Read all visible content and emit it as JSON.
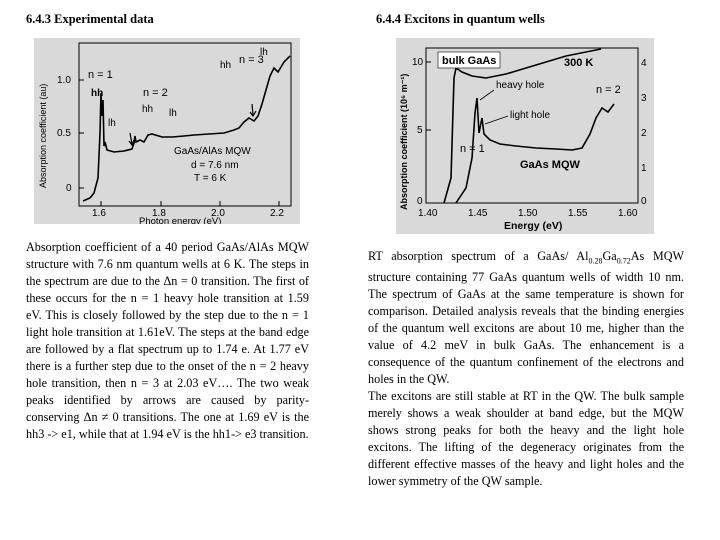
{
  "left": {
    "heading": "6.4.3   Experimental data",
    "caption": "Absorption coefficient of a 40 period GaAs/AlAs MQW structure with 7.6 nm quantum wells at 6 K. The steps in the spectrum are due to the Δn = 0 transition. The first of these occurs for the n = 1 heavy hole transition at 1.59 eV. This is closely followed by the step due to the n = 1 light hole transition at 1.61eV. The steps at the band edge are followed by a flat spectrum up to 1.74 e. At 1.77 eV there is a further step due to the onset of the n = 2 heavy hole transition, then n = 3 at 2.03 eV…. The two weak peaks identified by arrows are caused by parity-conserving Δn ≠ 0 transitions. The one at 1.69 eV is the hh3 -> e1, while that at 1.94 eV is the hh1-> e3 transition.",
    "chart": {
      "ylabel": "Absorption coefficient (au)",
      "xlabel": "Photon energy (eV)",
      "xticks": [
        "1.6",
        "1.8",
        "2.0",
        "2.2"
      ],
      "yticks": [
        "1.0",
        "0.5",
        "0"
      ],
      "labels": {
        "n1": "n = 1",
        "hh1": "hh",
        "lh1": "lh",
        "n2": "n = 2",
        "hh2": "hh",
        "lh2": "lh",
        "n3": "n = 3",
        "hh3": "hh",
        "lh3": "lh",
        "sample": "GaAs/AlAs MQW",
        "d": "d = 7.6 nm",
        "T": "T = 6 K"
      }
    }
  },
  "right": {
    "heading": "6.4.4   Excitons in quantum wells",
    "caption_p1_a": "RT absorption spectrum of a GaAs/ Al",
    "caption_p1_sub1": "0.28",
    "caption_p1_b": "Ga",
    "caption_p1_sub2": "0.72",
    "caption_p1_c": "As MQW structure containing 77 GaAs quantum wells of  width 10 nm. The spectrum of GaAs at the same temperature is shown for comparison. Detailed analysis reveals that the binding energies of the quantum well excitons are about 10 me, higher than the value of 4.2 meV in bulk GaAs. The enhancement is a consequence of the quantum confinement of the electrons and holes in the QW.",
    "caption_p2": "The excitons are still stable at RT in the QW.  The bulk sample merely shows a weak shoulder at band edge, but the MQW shows strong peaks for both the heavy and the light hole excitons. The lifting of the degeneracy originates from the different effective masses of the heavy and light holes and the lower symmetry of the QW sample.",
    "chart": {
      "ylabel": "Absorption coefficient (10⁶ m⁻¹)",
      "xlabel": "Energy (eV)",
      "xticks": [
        "1.40",
        "1.45",
        "1.50",
        "1.55",
        "1.60"
      ],
      "yticks_left": [
        "10",
        "5",
        "0"
      ],
      "yticks_right": [
        "4",
        "3",
        "2",
        "1",
        "0"
      ],
      "labels": {
        "bulk": "bulk GaAs",
        "temp": "300 K",
        "heavy": "heavy hole",
        "light": "light hole",
        "n2": "n = 2",
        "n1": "n = 1",
        "mqw": "GaAs MQW"
      }
    }
  }
}
